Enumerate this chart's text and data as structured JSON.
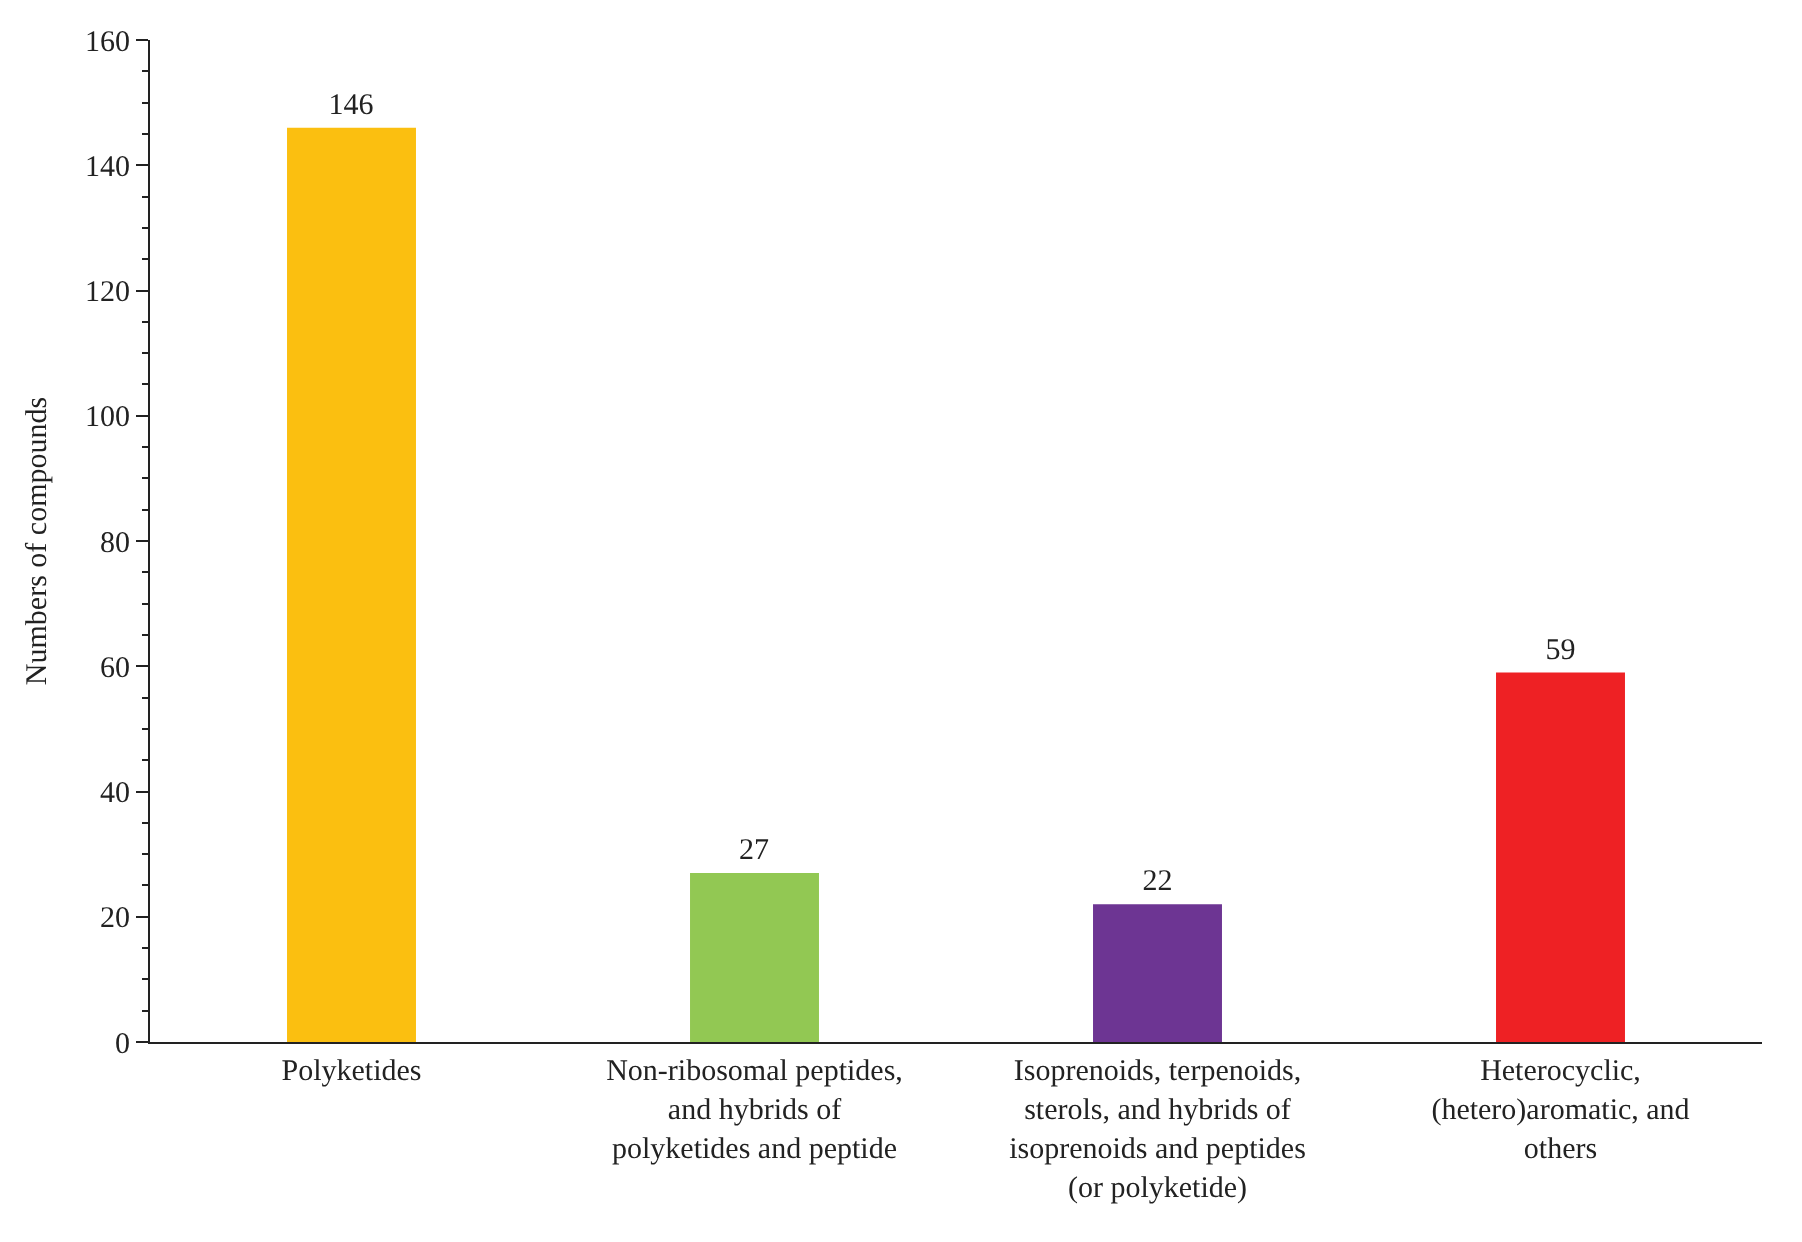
{
  "chart_data": {
    "type": "bar",
    "ylabel": "Numbers of compounds",
    "categories": [
      "Polyketides",
      "Non-ribosomal peptides,\nand hybrids of\npolyketides and peptide",
      "Isoprenoids, terpenoids,\nsterols, and hybrids of\nisoprenoids and peptides\n(or polyketide)",
      "Heterocyclic,\n(hetero)aromatic, and\nothers"
    ],
    "values": [
      146,
      27,
      22,
      59
    ],
    "colors": [
      "#fbbf10",
      "#92c853",
      "#6d3593",
      "#ee2124"
    ],
    "ylim": [
      0,
      160
    ],
    "yticks": [
      0,
      20,
      40,
      60,
      80,
      100,
      120,
      140,
      160
    ],
    "data_labels": true
  }
}
